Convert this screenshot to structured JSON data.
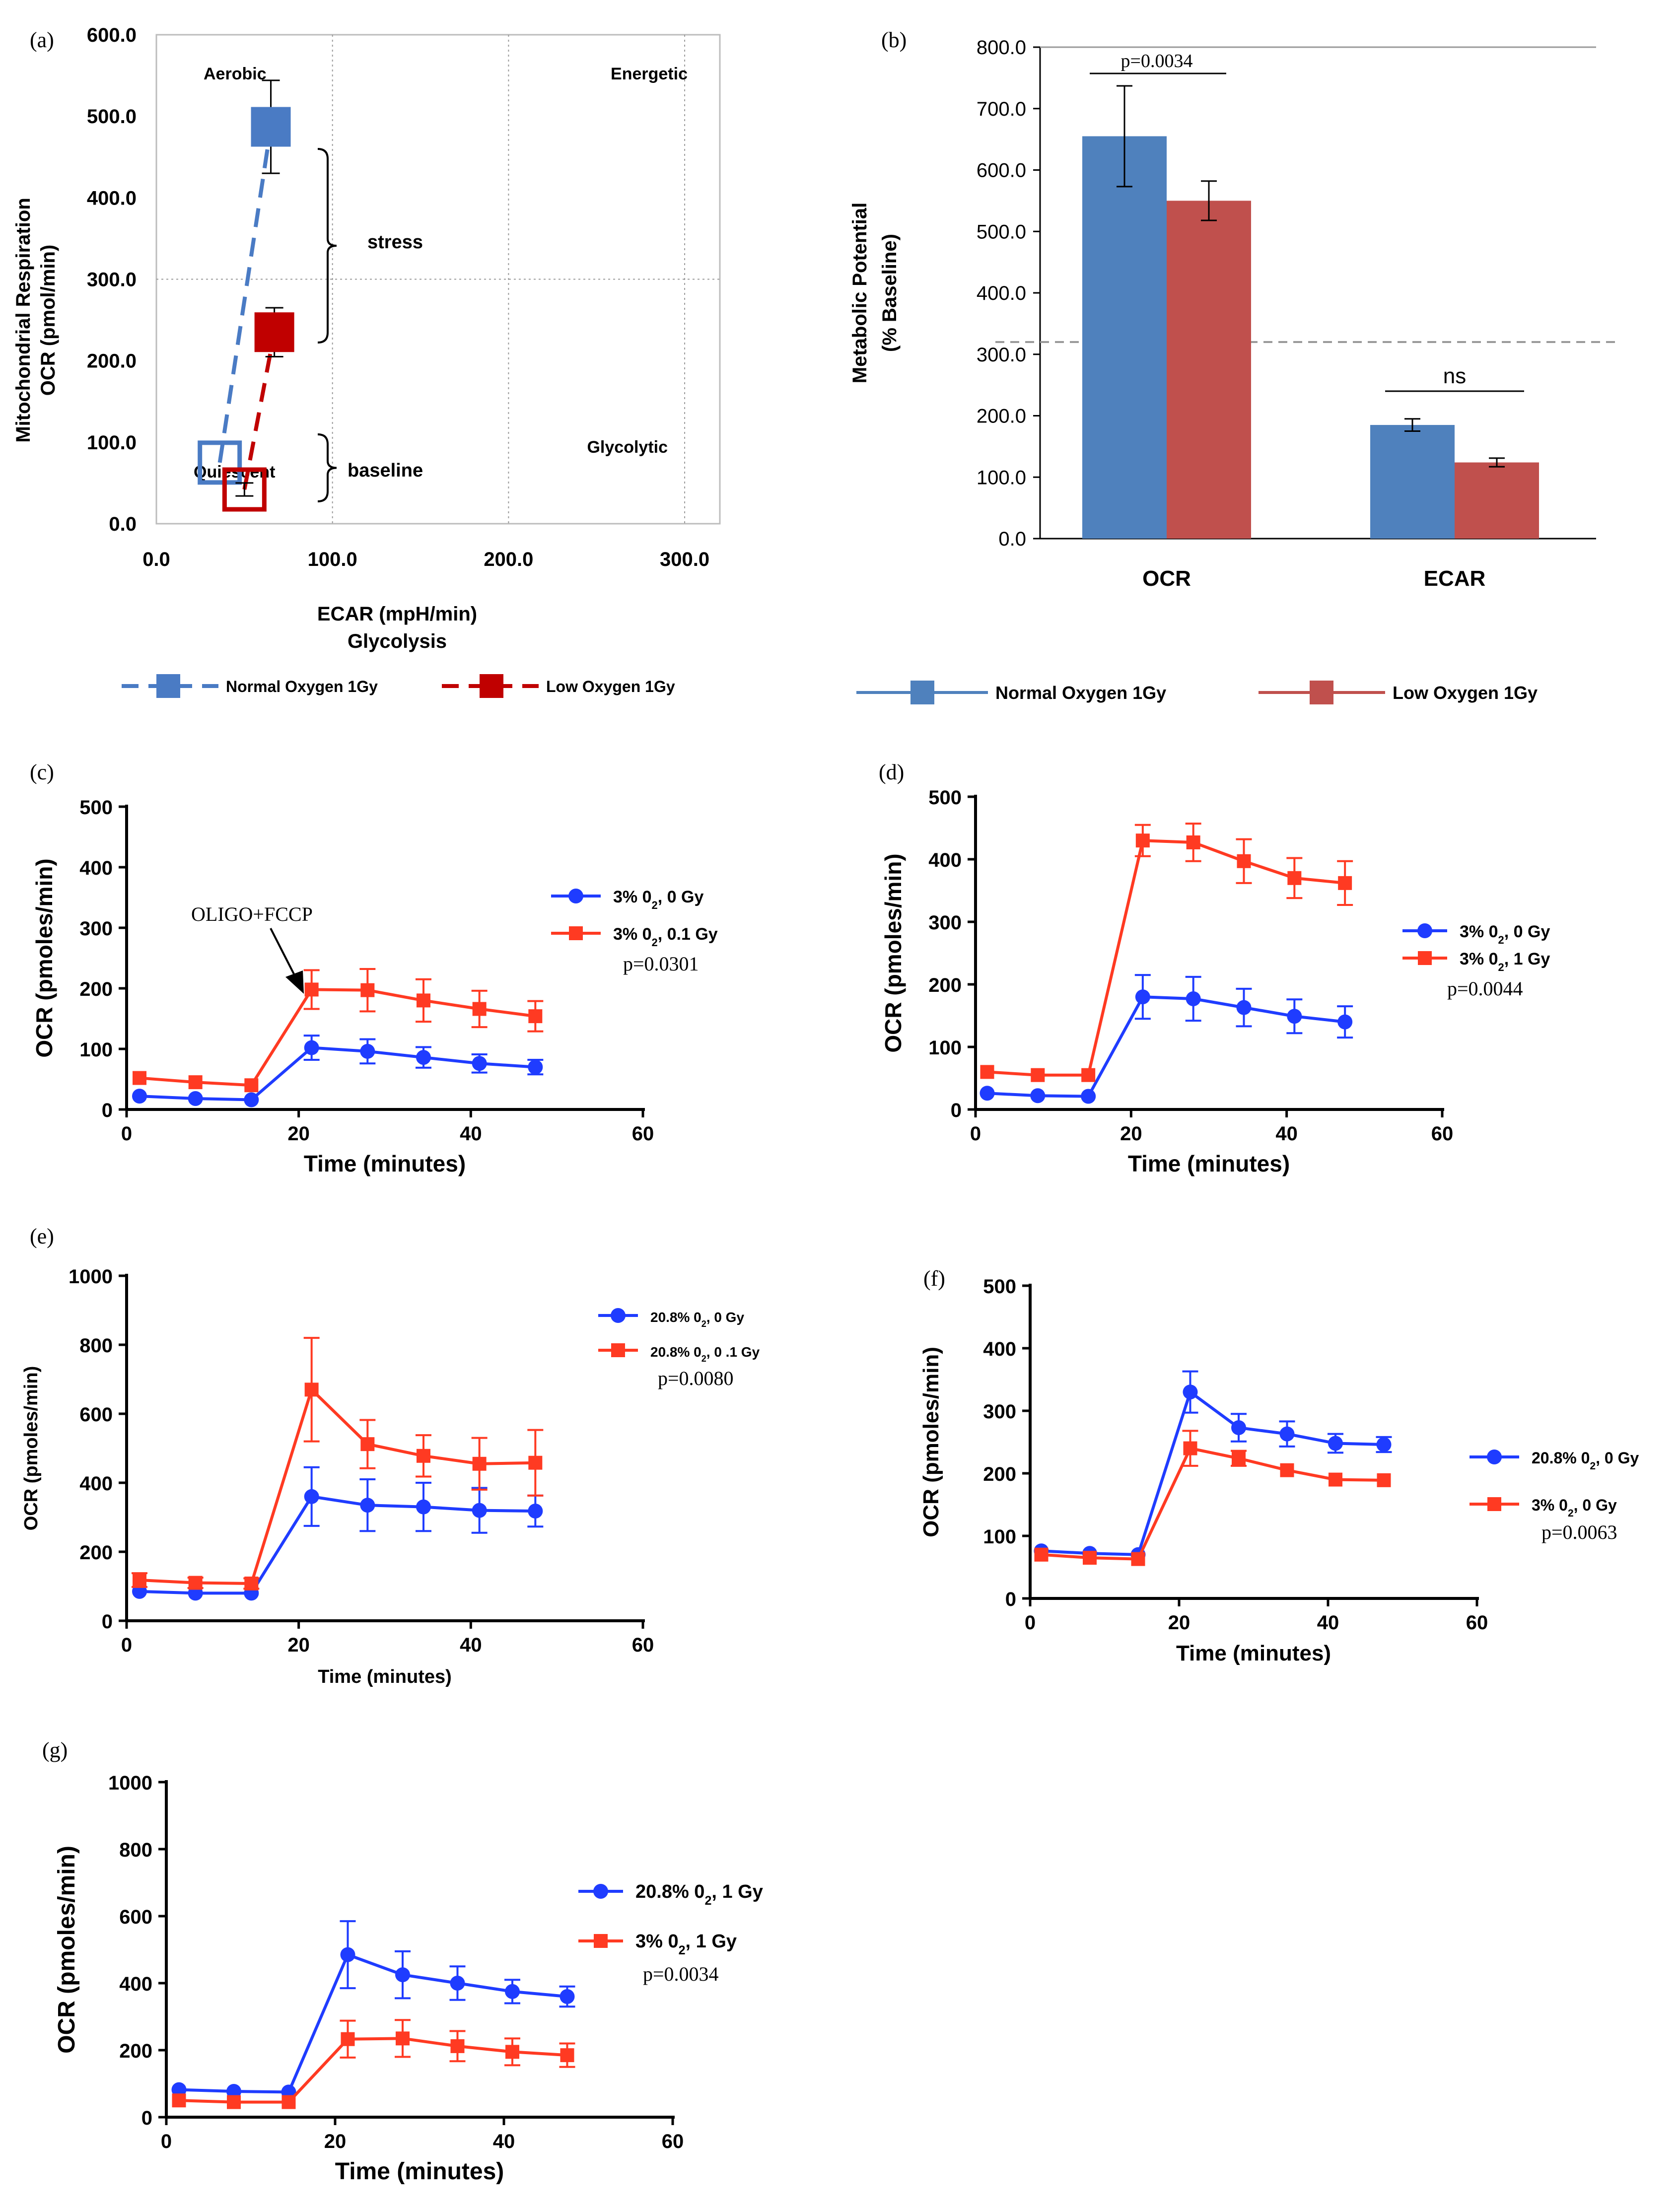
{
  "colors": {
    "seahorse_blue": "#4a7bc4",
    "seahorse_red": "#c00000",
    "bar_blue": "#4f81bd",
    "bar_red": "#c0504d",
    "prism_blue": "#1f3cff",
    "prism_red": "#ff3a22",
    "grid": "#b5b5b5",
    "text": "#000000"
  },
  "chart_data": [
    {
      "panel": "(a)",
      "type": "scatter",
      "title": "",
      "xlabel": "ECAR (mpH/min)",
      "xlabel2": "Glycolysis",
      "ylabel": "Mitochondrial Respiration",
      "ylabel2": "OCR (pmol/min)",
      "xlim": [
        0,
        320
      ],
      "ylim": [
        0,
        600
      ],
      "xticks": [
        "0.0",
        "100.0",
        "200.0",
        "300.0"
      ],
      "yticks": [
        "0.0",
        "100.0",
        "200.0",
        "300.0",
        "400.0",
        "500.0",
        "600.0"
      ],
      "quadrants": [
        "Aerobic",
        "Energetic",
        "Quiescent",
        "Glycolytic"
      ],
      "brackets": [
        "stress",
        "baseline"
      ],
      "series": [
        {
          "name": "Normal Oxygen 1Gy",
          "style": "dashed",
          "points": [
            {
              "x": 36,
              "y": 75,
              "err": 0,
              "label": "baseline"
            },
            {
              "x": 65,
              "y": 487,
              "err": 57,
              "label": "stress"
            }
          ]
        },
        {
          "name": "Low Oxygen 1Gy",
          "style": "dashed",
          "points": [
            {
              "x": 50,
              "y": 42,
              "err": 8,
              "label": "baseline"
            },
            {
              "x": 67,
              "y": 235,
              "err": 30,
              "label": "stress"
            }
          ]
        }
      ]
    },
    {
      "panel": "(b)",
      "type": "bar",
      "ylabel": "Metabolic Potential",
      "ylabel2": "(% Baseline)",
      "categories": [
        "OCR",
        "ECAR"
      ],
      "ylim": [
        0,
        800
      ],
      "yticks": [
        "0.0",
        "100.0",
        "200.0",
        "300.0",
        "400.0",
        "500.0",
        "600.0",
        "700.0",
        "800.0"
      ],
      "reference_line": 320,
      "series": [
        {
          "name": "Normal Oxygen 1Gy",
          "values": [
            655,
            185
          ],
          "errors": [
            82,
            10
          ]
        },
        {
          "name": "Low Oxygen 1Gy",
          "values": [
            550,
            124
          ],
          "errors": [
            32,
            7
          ]
        }
      ],
      "annotations": [
        "p=0.0034",
        "ns"
      ]
    },
    {
      "panel": "(c)",
      "type": "line",
      "xlabel": "Time (minutes)",
      "ylabel": "OCR (pmoles/min)",
      "xlim": [
        0,
        60
      ],
      "ylim": [
        0,
        500
      ],
      "xticks": [
        "0",
        "20",
        "40",
        "60"
      ],
      "yticks": [
        "0",
        "100",
        "200",
        "300",
        "400",
        "500"
      ],
      "x": [
        1.5,
        8,
        14.5,
        21.5,
        28,
        34.5,
        41,
        47.5
      ],
      "arrow_label": "OLIGO+FCCP",
      "pvalue": "p=0.0301",
      "series": [
        {
          "name": "3% 0₂, 0 Gy",
          "values": [
            22,
            18,
            16,
            102,
            96,
            86,
            76,
            70
          ],
          "errors": [
            0,
            0,
            0,
            20,
            20,
            17,
            15,
            12
          ]
        },
        {
          "name": "3% 0₂, 0.1 Gy",
          "values": [
            52,
            45,
            40,
            198,
            197,
            180,
            166,
            154
          ],
          "errors": [
            0,
            0,
            0,
            32,
            35,
            35,
            30,
            25
          ]
        }
      ]
    },
    {
      "panel": "(d)",
      "type": "line",
      "xlabel": "Time (minutes)",
      "ylabel": "OCR (pmoles/min)",
      "xlim": [
        0,
        60
      ],
      "ylim": [
        0,
        500
      ],
      "xticks": [
        "0",
        "20",
        "40",
        "60"
      ],
      "yticks": [
        "0",
        "100",
        "200",
        "300",
        "400",
        "500"
      ],
      "x": [
        1.5,
        8,
        14.5,
        21.5,
        28,
        34.5,
        41,
        47.5
      ],
      "pvalue": "p=0.0044",
      "series": [
        {
          "name": "3% 0₂, 0 Gy",
          "values": [
            26,
            22,
            21,
            180,
            177,
            163,
            149,
            140
          ],
          "errors": [
            0,
            0,
            0,
            35,
            35,
            30,
            27,
            25
          ]
        },
        {
          "name": "3% 0₂, 1 Gy",
          "values": [
            60,
            55,
            55,
            430,
            427,
            397,
            370,
            362
          ],
          "errors": [
            0,
            0,
            0,
            25,
            30,
            35,
            32,
            35
          ]
        }
      ]
    },
    {
      "panel": "(e)",
      "type": "line",
      "xlabel": "Time (minutes)",
      "ylabel": "OCR (pmoles/min)",
      "xlim": [
        0,
        60
      ],
      "ylim": [
        0,
        1000
      ],
      "xticks": [
        "0",
        "20",
        "40",
        "60"
      ],
      "yticks": [
        "0",
        "200",
        "400",
        "600",
        "800",
        "1000"
      ],
      "x": [
        1.5,
        8,
        14.5,
        21.5,
        28,
        34.5,
        41,
        47.5
      ],
      "pvalue": "p=0.0080",
      "series": [
        {
          "name": "20.8% 0₂, 0 Gy",
          "values": [
            85,
            80,
            80,
            360,
            335,
            330,
            320,
            318
          ],
          "errors": [
            0,
            0,
            0,
            85,
            75,
            70,
            65,
            45
          ]
        },
        {
          "name": "20.8% 0₂, 0 .1 Gy",
          "values": [
            118,
            110,
            108,
            670,
            512,
            478,
            455,
            458
          ],
          "errors": [
            20,
            15,
            15,
            150,
            70,
            60,
            75,
            95
          ]
        }
      ]
    },
    {
      "panel": "(f)",
      "type": "line",
      "xlabel": "Time (minutes)",
      "ylabel": "OCR (pmoles/min)",
      "xlim": [
        0,
        60
      ],
      "ylim": [
        0,
        500
      ],
      "xticks": [
        "0",
        "20",
        "40",
        "60"
      ],
      "yticks": [
        "0",
        "100",
        "200",
        "300",
        "400",
        "500"
      ],
      "x": [
        1.5,
        8,
        14.5,
        21.5,
        28,
        34.5,
        41,
        47.5
      ],
      "pvalue": "p=0.0063",
      "series": [
        {
          "name": "20.8% 0₂, 0 Gy",
          "values": [
            76,
            72,
            70,
            330,
            273,
            263,
            248,
            246
          ],
          "errors": [
            0,
            0,
            0,
            33,
            22,
            20,
            15,
            12
          ]
        },
        {
          "name": "3% 0₂, 0 Gy",
          "values": [
            70,
            65,
            63,
            240,
            224,
            205,
            190,
            189
          ],
          "errors": [
            0,
            0,
            0,
            28,
            12,
            0,
            0,
            0
          ]
        }
      ]
    },
    {
      "panel": "(g)",
      "type": "line",
      "xlabel": "Time (minutes)",
      "ylabel": "OCR (pmoles/min)",
      "xlim": [
        0,
        60
      ],
      "ylim": [
        0,
        1000
      ],
      "xticks": [
        "0",
        "20",
        "40",
        "60"
      ],
      "yticks": [
        "0",
        "200",
        "400",
        "600",
        "800",
        "1000"
      ],
      "x": [
        1.5,
        8,
        14.5,
        21.5,
        28,
        34.5,
        41,
        47.5
      ],
      "pvalue": "p=0.0034",
      "series": [
        {
          "name": "20.8% 0₂, 1 Gy",
          "values": [
            82,
            77,
            75,
            485,
            425,
            400,
            375,
            360
          ],
          "errors": [
            0,
            0,
            0,
            100,
            70,
            50,
            35,
            30
          ]
        },
        {
          "name": "3% 0₂, 1 Gy",
          "values": [
            50,
            45,
            45,
            233,
            235,
            212,
            195,
            185
          ],
          "errors": [
            0,
            0,
            0,
            55,
            55,
            45,
            40,
            35
          ]
        }
      ]
    }
  ]
}
